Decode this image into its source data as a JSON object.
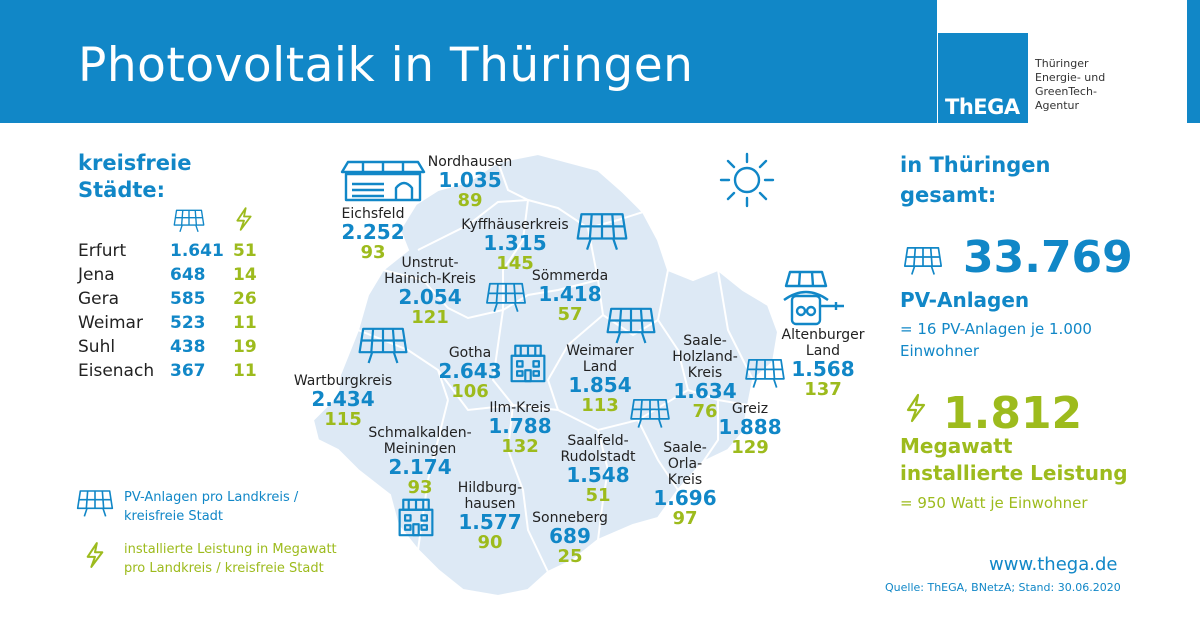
{
  "header": {
    "title": "Photovoltaik in Thüringen",
    "logo_text": "ThEGA",
    "agency_lines": [
      "Thüringer",
      "Energie- und",
      "GreenTech-",
      "Agentur"
    ]
  },
  "colors": {
    "brand_blue": "#1187c7",
    "accent_green": "#9dbb1d",
    "map_fill": "#dde9f5"
  },
  "cities": {
    "title_lines": [
      "kreisfreie",
      "Städte:"
    ],
    "icon_pv": "solar-panel-icon",
    "icon_mw": "lightning-icon",
    "rows": [
      {
        "name": "Erfurt",
        "pv": "1.641",
        "mw": "51"
      },
      {
        "name": "Jena",
        "pv": "648",
        "mw": "14"
      },
      {
        "name": "Gera",
        "pv": "585",
        "mw": "26"
      },
      {
        "name": "Weimar",
        "pv": "523",
        "mw": "11"
      },
      {
        "name": "Suhl",
        "pv": "438",
        "mw": "19"
      },
      {
        "name": "Eisenach",
        "pv": "367",
        "mw": "11"
      }
    ]
  },
  "regions": {
    "nordhausen": {
      "name_lines": [
        "Nordhausen"
      ],
      "pv": "1.035",
      "mw": "89"
    },
    "eichsfeld": {
      "name_lines": [
        "Eichsfeld"
      ],
      "pv": "2.252",
      "mw": "93"
    },
    "kyffhaeuser": {
      "name_lines": [
        "Kyffhäuserkreis"
      ],
      "pv": "1.315",
      "mw": "145"
    },
    "unstrut": {
      "name_lines": [
        "Unstrut-",
        "Hainich-Kreis"
      ],
      "pv": "2.054",
      "mw": "121"
    },
    "soemmerda": {
      "name_lines": [
        "Sömmerda"
      ],
      "pv": "1.418",
      "mw": "57"
    },
    "gotha": {
      "name_lines": [
        "Gotha"
      ],
      "pv": "2.643",
      "mw": "106"
    },
    "weimarer_land": {
      "name_lines": [
        "Weimarer",
        "Land"
      ],
      "pv": "1.854",
      "mw": "113"
    },
    "saale_holzland": {
      "name_lines": [
        "Saale-",
        "Holzland-",
        "Kreis"
      ],
      "pv": "1.634",
      "mw": "76"
    },
    "altenburger": {
      "name_lines": [
        "Altenburger",
        "Land"
      ],
      "pv": "1.568",
      "mw": "137"
    },
    "wartburg": {
      "name_lines": [
        "Wartburgkreis"
      ],
      "pv": "2.434",
      "mw": "115"
    },
    "ilm": {
      "name_lines": [
        "Ilm-Kreis"
      ],
      "pv": "1.788",
      "mw": "132"
    },
    "schmalkalden": {
      "name_lines": [
        "Schmalkalden-",
        "Meiningen"
      ],
      "pv": "2.174",
      "mw": "93"
    },
    "saalfeld": {
      "name_lines": [
        "Saalfeld-",
        "Rudolstadt"
      ],
      "pv": "1.548",
      "mw": "51"
    },
    "greiz": {
      "name_lines": [
        "Greiz"
      ],
      "pv": "1.888",
      "mw": "129"
    },
    "saale_orla": {
      "name_lines": [
        "Saale-",
        "Orla-",
        "Kreis"
      ],
      "pv": "1.696",
      "mw": "97"
    },
    "hildburghausen": {
      "name_lines": [
        "Hildburg-",
        "hausen"
      ],
      "pv": "1.577",
      "mw": "90"
    },
    "sonneberg": {
      "name_lines": [
        "Sonneberg"
      ],
      "pv": "689",
      "mw": "25"
    }
  },
  "totals": {
    "title_lines": [
      "in Thüringen",
      "gesamt:"
    ],
    "pv_count": "33.769",
    "pv_label": "PV-Anlagen",
    "pv_note_lines": [
      "= 16 PV-Anlagen je 1.000",
      "Einwohner"
    ],
    "mw_value": "1.812",
    "mw_label_lines": [
      "Megawatt",
      "installierte Leistung"
    ],
    "mw_note": "= 950 Watt je Einwohner"
  },
  "legend": {
    "pv_lines": [
      "PV-Anlagen pro Landkreis /",
      "kreisfreie Stadt"
    ],
    "mw_lines": [
      "installierte Leistung in Megawatt",
      "pro Landkreis / kreisfreie Stadt"
    ]
  },
  "footer": {
    "website": "www.thega.de",
    "source": "Quelle: ThEGA, BNetzA; Stand: 30.06.2020"
  }
}
